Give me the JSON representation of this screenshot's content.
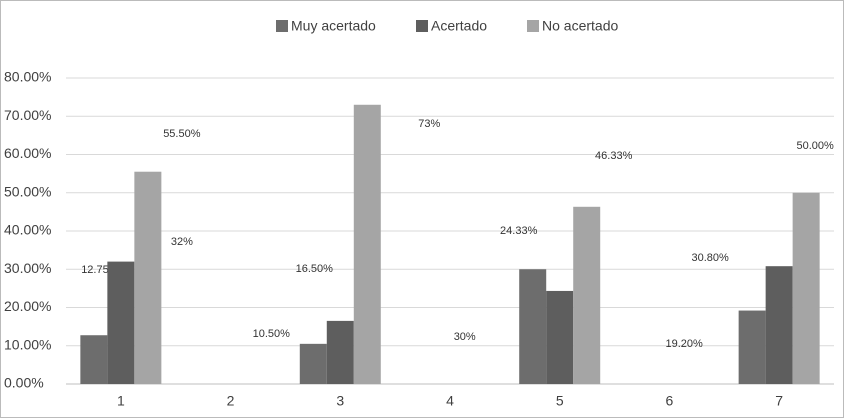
{
  "chart_data": {
    "type": "bar",
    "categories": [
      "1",
      "2",
      "3",
      "4",
      "5",
      "6",
      "7"
    ],
    "series": [
      {
        "name": "Muy acertado",
        "color": "#6d6d6d",
        "values": [
          12.75,
          null,
          10.5,
          null,
          30,
          null,
          19.2
        ],
        "value_labels": [
          "12.75%",
          null,
          "10.50%",
          null,
          "30%",
          null,
          "19.20%"
        ]
      },
      {
        "name": "Acertado",
        "color": "#5e5e5e",
        "values": [
          32,
          null,
          16.5,
          null,
          24.33,
          null,
          30.8
        ],
        "value_labels": [
          "32%",
          null,
          "16.50%",
          null,
          "24.33%",
          null,
          "30.80%"
        ]
      },
      {
        "name": "No acertado",
        "color": "#a5a5a5",
        "values": [
          55.5,
          null,
          73,
          null,
          46.33,
          null,
          50
        ],
        "value_labels": [
          "55.50%",
          null,
          "73%",
          null,
          "46.33%",
          null,
          "50.00%"
        ]
      }
    ],
    "ylim": [
      0,
      80
    ],
    "yticks": [
      {
        "value": 0,
        "label": "0.00%"
      },
      {
        "value": 10,
        "label": "10.00%"
      },
      {
        "value": 20,
        "label": "20.00%"
      },
      {
        "value": 30,
        "label": "30.00%"
      },
      {
        "value": 40,
        "label": "40.00%"
      },
      {
        "value": 50,
        "label": "50.00%"
      },
      {
        "value": 60,
        "label": "60.00%"
      },
      {
        "value": 70,
        "label": "70.00%"
      },
      {
        "value": 80,
        "label": "80.00%"
      }
    ],
    "grid": true,
    "legend": "top"
  }
}
